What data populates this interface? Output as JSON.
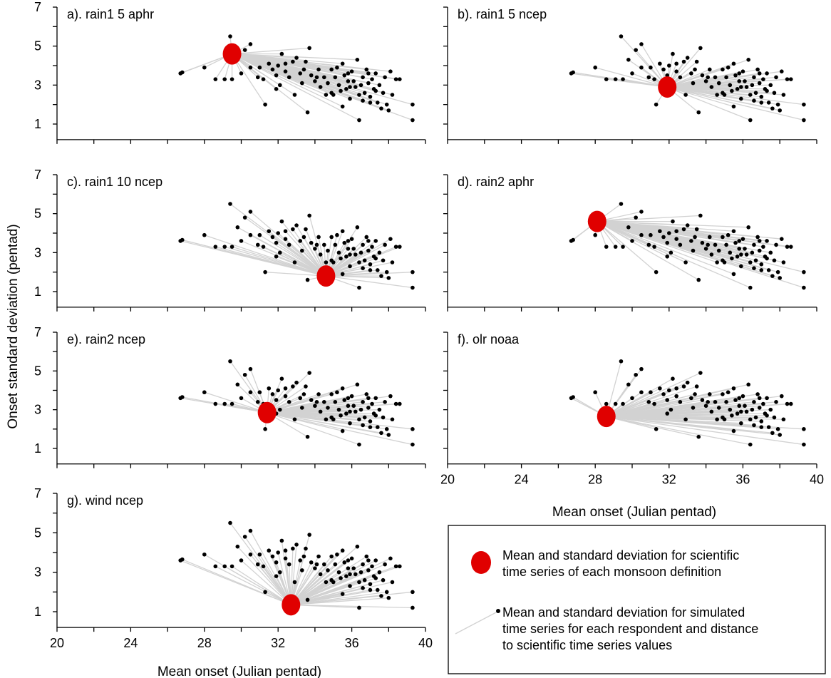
{
  "chart_data": {
    "type": "scatter",
    "ylabel": "Onset standard deviation (pentad)",
    "xlabel": "Mean onset (Julian pentad)",
    "xlim": [
      20,
      40
    ],
    "ylim": [
      0.2,
      7.2
    ],
    "xticks": [
      20,
      24,
      28,
      32,
      36,
      40
    ],
    "yticks": [
      1,
      3,
      5,
      7
    ],
    "simulated_points": [
      [
        26.8,
        3.65
      ],
      [
        26.7,
        3.6
      ],
      [
        28.0,
        3.9
      ],
      [
        28.6,
        3.3
      ],
      [
        29.1,
        3.3
      ],
      [
        29.4,
        5.5
      ],
      [
        29.8,
        4.3
      ],
      [
        30.2,
        4.8
      ],
      [
        30.5,
        5.1
      ],
      [
        30.9,
        3.4
      ],
      [
        31.0,
        3.9
      ],
      [
        31.3,
        2.0
      ],
      [
        31.5,
        4.1
      ],
      [
        31.7,
        3.8
      ],
      [
        31.9,
        3.5
      ],
      [
        32.0,
        4.0
      ],
      [
        32.1,
        3.0
      ],
      [
        32.2,
        4.6
      ],
      [
        32.4,
        3.7
      ],
      [
        32.6,
        3.4
      ],
      [
        32.8,
        4.2
      ],
      [
        33.0,
        4.4
      ],
      [
        33.2,
        3.6
      ],
      [
        33.4,
        3.8
      ],
      [
        33.5,
        4.2
      ],
      [
        33.7,
        4.9
      ],
      [
        33.8,
        3.5
      ],
      [
        34.0,
        3.2
      ],
      [
        34.2,
        3.8
      ],
      [
        34.3,
        2.9
      ],
      [
        34.5,
        3.4
      ],
      [
        34.7,
        3.1
      ],
      [
        34.9,
        2.6
      ],
      [
        35.0,
        2.5
      ],
      [
        35.1,
        3.4
      ],
      [
        35.2,
        3.9
      ],
      [
        35.3,
        3.0
      ],
      [
        35.4,
        2.7
      ],
      [
        35.5,
        4.1
      ],
      [
        35.6,
        3.5
      ],
      [
        35.7,
        2.8
      ],
      [
        35.8,
        3.2
      ],
      [
        35.9,
        2.3
      ],
      [
        36.0,
        3.7
      ],
      [
        36.1,
        3.2
      ],
      [
        36.2,
        2.9
      ],
      [
        36.3,
        4.3
      ],
      [
        36.4,
        2.5
      ],
      [
        36.5,
        3.0
      ],
      [
        36.6,
        3.4
      ],
      [
        36.7,
        2.6
      ],
      [
        36.8,
        3.8
      ],
      [
        36.9,
        3.1
      ],
      [
        37.0,
        2.4
      ],
      [
        37.1,
        3.3
      ],
      [
        37.2,
        2.8
      ],
      [
        37.3,
        3.6
      ],
      [
        37.4,
        2.1
      ],
      [
        37.5,
        3.0
      ],
      [
        37.6,
        1.8
      ],
      [
        37.7,
        2.6
      ],
      [
        37.8,
        3.4
      ],
      [
        37.9,
        2.0
      ],
      [
        38.0,
        1.7
      ],
      [
        38.1,
        3.7
      ],
      [
        38.2,
        2.5
      ],
      [
        38.4,
        3.3
      ],
      [
        39.3,
        2.0
      ],
      [
        39.3,
        1.2
      ],
      [
        29.5,
        3.3
      ],
      [
        30.0,
        3.6
      ],
      [
        30.5,
        3.9
      ],
      [
        31.2,
        3.3
      ],
      [
        32.9,
        2.5
      ],
      [
        33.6,
        1.6
      ],
      [
        34.6,
        2.5
      ],
      [
        35.5,
        1.9
      ],
      [
        36.4,
        1.2
      ],
      [
        37.0,
        2.1
      ],
      [
        38.6,
        3.3
      ],
      [
        34.9,
        3.8
      ],
      [
        35.8,
        3.6
      ],
      [
        36.6,
        2.2
      ],
      [
        37.3,
        2.7
      ],
      [
        33.3,
        3.1
      ],
      [
        31.9,
        2.8
      ],
      [
        32.4,
        4.1
      ],
      [
        34.1,
        3.4
      ],
      [
        36.9,
        3.6
      ],
      [
        35.9,
        2.9
      ]
    ],
    "panels": [
      {
        "label": "a). rain1 5 aphr",
        "mean": [
          29.5,
          4.6
        ]
      },
      {
        "label": "b). rain1 5 ncep",
        "mean": [
          31.9,
          2.9
        ]
      },
      {
        "label": "c). rain1 10 ncep",
        "mean": [
          34.6,
          1.8
        ]
      },
      {
        "label": "d). rain2 aphr",
        "mean": [
          28.1,
          4.6
        ]
      },
      {
        "label": "e). rain2 ncep",
        "mean": [
          31.4,
          2.85
        ]
      },
      {
        "label": "f). olr noaa",
        "mean": [
          28.6,
          2.65
        ]
      },
      {
        "label": "g). wind ncep",
        "mean": [
          32.7,
          1.35
        ]
      }
    ],
    "legend": {
      "location": "bottom-right",
      "mean_line1": "Mean and standard deviation for scientific",
      "mean_line2": "time series of each monsoon definition",
      "sim_line1": "Mean and standard deviation for simulated",
      "sim_line2": "time series for each respondent and distance",
      "sim_line3": "to scientific time series values"
    }
  }
}
